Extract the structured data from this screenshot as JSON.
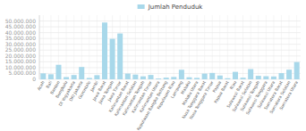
{
  "chart_data": {
    "type": "bar",
    "categories": [
      "Aceh",
      "Bali",
      "Banten",
      "Bengkulu",
      "DI Yogyakarta",
      "DKI Jakarta",
      "Gorontalo",
      "Jambi",
      "Jawa Barat",
      "Jawa Tengah",
      "Jawa Timur",
      "Kalimantan Barat",
      "Kalimantan Selatan",
      "Kalimantan Tengah",
      "Kalimantan Timur",
      "Kalimantan Utara",
      "Kepulauan Bangka Belitung",
      "Kepulauan Riau",
      "Lampung",
      "Maluku",
      "Maluku Utara",
      "Nusa Tenggara Barat",
      "Nusa Tenggara Timur",
      "Papua",
      "Papua Barat",
      "Riau",
      "Sulawesi Barat",
      "Sulawesi Selatan",
      "Sulawesi Tengah",
      "Sulawesi Tenggara",
      "Sulawesi Utara",
      "Sumatera Barat",
      "Sumatera Selatan",
      "Sumatera Utara"
    ],
    "series": [
      {
        "name": "Jumlah Penduduk",
        "color": "#a8d8ea",
        "values": [
          5096248,
          4317404,
          12448237,
          1934269,
          3668719,
          10562088,
          1168907,
          3548228,
          48683861,
          34718204,
          39293972,
          4932838,
          4055479,
          2550784,
          3721639,
          692163,
          1430900,
          2028564,
          8205141,
          1744654,
          1241999,
          4896162,
          5461925,
          3265202,
          953100,
          6394087,
          1394983,
          8771970,
          2985734,
          2651895,
          2461028,
          5321489,
          8267432,
          14800000
        ]
      }
    ],
    "ylim": [
      0,
      55000000
    ],
    "yticks": [
      0,
      {
        "value": 5000000,
        "label": "5.000.000"
      },
      {
        "value": 10000000,
        "label": "10.000.000"
      },
      {
        "value": 15000000,
        "label": "15.000.000"
      },
      {
        "value": 20000000,
        "label": "20.000.000"
      },
      {
        "value": 25000000,
        "label": "25.000.000"
      },
      {
        "value": 30000000,
        "label": "30.000.000"
      },
      {
        "value": 35000000,
        "label": "35.000.000"
      },
      {
        "value": 40000000,
        "label": "40.000.000"
      },
      {
        "value": 45000000,
        "label": "45.000.000"
      },
      {
        "value": 50000000,
        "label": "50.000.000"
      }
    ],
    "grid": true,
    "legend": "top"
  }
}
